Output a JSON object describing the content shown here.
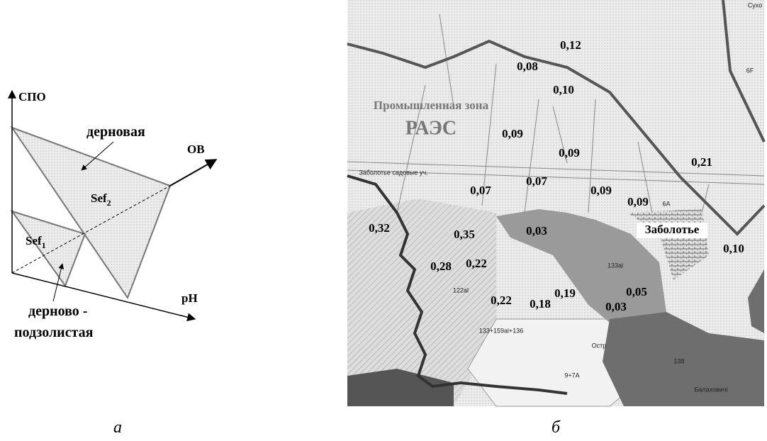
{
  "diagram": {
    "axis_y": "СПО",
    "axis_z": "ОВ",
    "axis_x": "pH",
    "label_top": "дерновая",
    "sef2": {
      "text": "Sef",
      "sub": "2"
    },
    "sef1": {
      "text": "Sef",
      "sub": "1"
    },
    "label_bottom": [
      "дерново -",
      "подзолистая"
    ],
    "caption": "а"
  },
  "map": {
    "labels": [
      "0,12",
      "0,08",
      "0,10",
      "Промышленная зона",
      "РАЭС",
      "0,09",
      "0,09",
      "0,21",
      "Заболотье садовые уч.",
      "0,07",
      "0,07",
      "0,09",
      "0,09",
      "6А",
      "0,32",
      "0,35",
      "0,03",
      "Заболотье",
      "0,10",
      "133al",
      "0,28",
      "0,22",
      "122al",
      "0,22",
      "0,18",
      "0,19",
      "0,05",
      "0,03",
      "133+159al+136",
      "Остр",
      "9+7А",
      "138",
      "Балаховичі",
      "6F",
      "Сухо"
    ],
    "caption": "б"
  }
}
